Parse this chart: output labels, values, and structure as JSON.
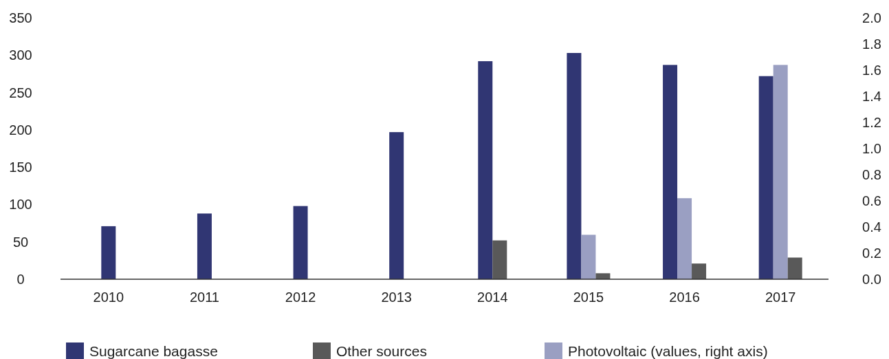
{
  "chart_data": {
    "type": "bar",
    "categories": [
      "2010",
      "2011",
      "2012",
      "2013",
      "2014",
      "2015",
      "2016",
      "2017"
    ],
    "series": [
      {
        "name": "Sugarcane bagasse",
        "color": "#303673",
        "values": [
          71,
          88,
          98,
          197,
          292,
          303,
          287,
          272
        ]
      },
      {
        "name": "Other sources",
        "color": "#595959",
        "values": [
          null,
          null,
          null,
          null,
          52,
          8,
          21,
          29
        ]
      },
      {
        "name": "Photovoltaic (values, right axis)",
        "color": "#9a9fc2",
        "axis": "y2",
        "values": [
          null,
          null,
          null,
          null,
          null,
          0.34,
          0.62,
          1.64
        ]
      }
    ],
    "ylim": [
      0,
      350
    ],
    "yticks": [
      0,
      50,
      100,
      150,
      200,
      250,
      300,
      350
    ],
    "y2lim": [
      0,
      2
    ],
    "y2ticks": [
      {
        "value": 0,
        "label": "0.0"
      },
      {
        "value": 0.2,
        "label": "0.2"
      },
      {
        "value": 0.4,
        "label": "0.4"
      },
      {
        "value": 0.6,
        "label": "0.6"
      },
      {
        "value": 0.8,
        "label": "0.8"
      },
      {
        "value": 1,
        "label": "1.0"
      },
      {
        "value": 1.2,
        "label": "1.2"
      },
      {
        "value": 1.4,
        "label": "1.4"
      },
      {
        "value": 1.6,
        "label": "1.6"
      },
      {
        "value": 1.8,
        "label": "1.8"
      },
      {
        "value": 2,
        "label": "2.0"
      }
    ],
    "grid": false,
    "legend": "bottom"
  }
}
